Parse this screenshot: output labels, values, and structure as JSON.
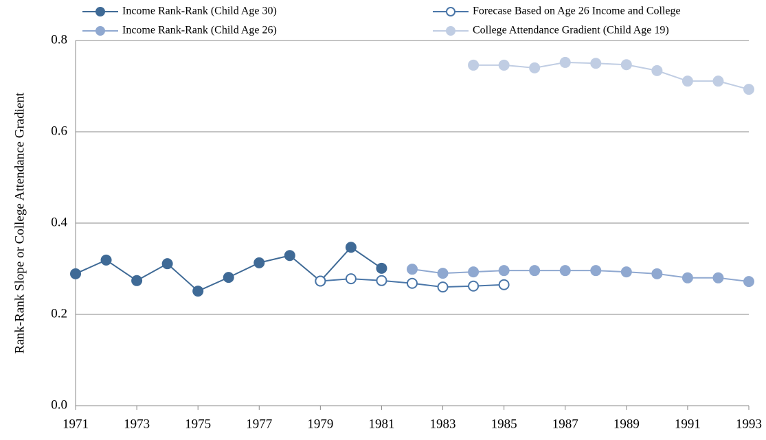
{
  "chart_data": {
    "type": "line",
    "y_label": "Rank-Rank Slope or College Attendance Gradient",
    "x": [
      1971,
      1972,
      1973,
      1974,
      1975,
      1976,
      1977,
      1978,
      1979,
      1980,
      1981,
      1982,
      1983,
      1984,
      1985,
      1986,
      1987,
      1988,
      1989,
      1990,
      1991,
      1992,
      1993
    ],
    "series": [
      {
        "name": "Income Rank-Rank (Child Age 30)",
        "color": "#3f6a96",
        "marker": "filled",
        "values": [
          0.289,
          0.319,
          0.274,
          0.311,
          0.251,
          0.281,
          0.313,
          0.329,
          0.273,
          0.347,
          0.301,
          null,
          null,
          null,
          null,
          null,
          null,
          null,
          null,
          null,
          null,
          null,
          null
        ]
      },
      {
        "name": "Forecase Based on Age 26 Income and College",
        "color": "#4a76a8",
        "marker": "hollow",
        "values": [
          null,
          null,
          null,
          null,
          null,
          null,
          null,
          null,
          0.273,
          0.278,
          0.274,
          0.268,
          0.26,
          0.262,
          0.265,
          null,
          null,
          null,
          null,
          null,
          null,
          null,
          null
        ]
      },
      {
        "name": "Income Rank-Rank (Child Age 26)",
        "color": "#8fa8d0",
        "marker": "filled",
        "values": [
          null,
          null,
          null,
          null,
          null,
          null,
          null,
          null,
          null,
          null,
          null,
          0.299,
          0.29,
          0.293,
          0.296,
          0.296,
          0.296,
          0.296,
          0.293,
          0.289,
          0.28,
          0.28,
          0.272
        ]
      },
      {
        "name": "College Attendance Gradient (Child Age 19)",
        "color": "#c0cde3",
        "marker": "filled",
        "values": [
          null,
          null,
          null,
          null,
          null,
          null,
          null,
          null,
          null,
          null,
          null,
          null,
          null,
          0.746,
          0.746,
          0.74,
          0.752,
          0.75,
          0.747,
          0.734,
          0.711,
          0.711,
          0.693
        ]
      }
    ],
    "xlim": [
      1971,
      1993
    ],
    "xticks": [
      1971,
      1973,
      1975,
      1977,
      1979,
      1981,
      1983,
      1985,
      1987,
      1989,
      1991,
      1993
    ],
    "ylim": [
      0,
      0.8
    ],
    "yticks": [
      {
        "value": 0,
        "label": "0.0"
      },
      {
        "value": 0.2,
        "label": "0.2"
      },
      {
        "value": 0.4,
        "label": "0.4"
      },
      {
        "value": 0.6,
        "label": "0.6"
      },
      {
        "value": 0.8,
        "label": "0.8"
      }
    ],
    "grid": true
  }
}
